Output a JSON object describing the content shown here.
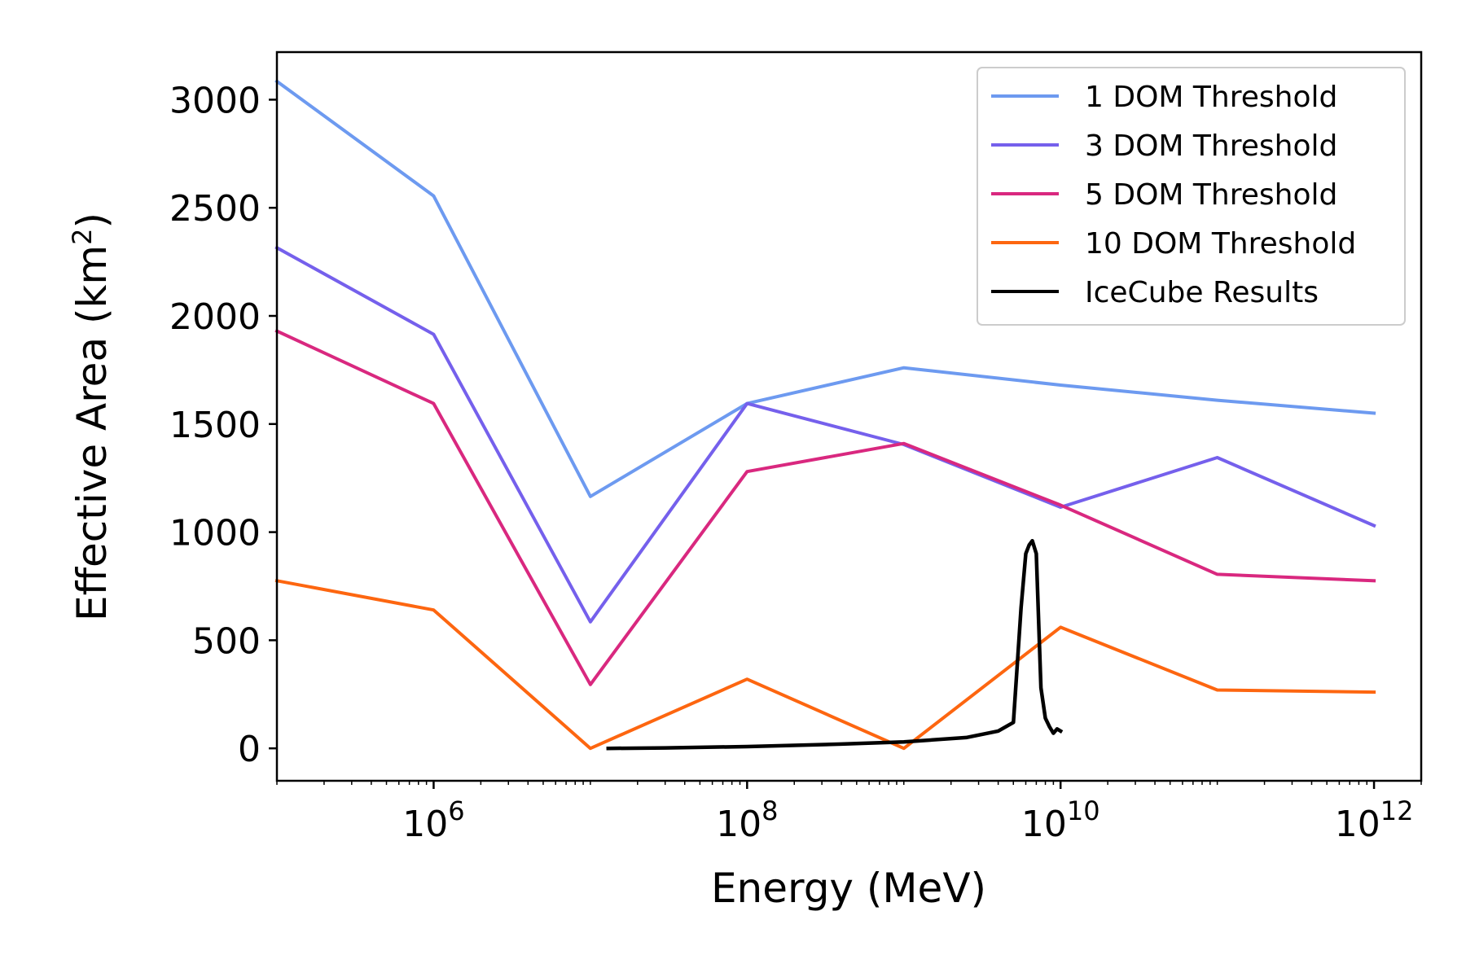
{
  "chart_data": {
    "type": "line",
    "xscale": "log",
    "xlabel": "Energy (MeV)",
    "ylabel_text": "Effective Area (km",
    "ylabel_sup": "2",
    "ylabel_close": ")",
    "xlim": [
      100000.0,
      2000000000000.0
    ],
    "ylim": [
      -150,
      3220
    ],
    "xticks": [
      {
        "value": 1000000.0,
        "base": "10",
        "exp": "6"
      },
      {
        "value": 100000000.0,
        "base": "10",
        "exp": "8"
      },
      {
        "value": 10000000000.0,
        "base": "10",
        "exp": "10"
      },
      {
        "value": 1000000000000.0,
        "base": "10",
        "exp": "12"
      }
    ],
    "yticks": [
      0,
      500,
      1000,
      1500,
      2000,
      2500,
      3000
    ],
    "grid": false,
    "legend_position": "top-right",
    "series": [
      {
        "name": "1 DOM Threshold",
        "color": "#6d9af0",
        "x": [
          100000.0,
          1000000.0,
          10000000.0,
          100000000.0,
          1000000000.0,
          10000000000.0,
          100000000000.0,
          1000000000000.0
        ],
        "y": [
          3085,
          2555,
          1165,
          1595,
          1760,
          1680,
          1610,
          1550
        ]
      },
      {
        "name": "3 DOM Threshold",
        "color": "#7560ec",
        "x": [
          100000.0,
          1000000.0,
          10000000.0,
          100000000.0,
          1000000000.0,
          10000000000.0,
          100000000000.0,
          1000000000000.0
        ],
        "y": [
          2315,
          1915,
          585,
          1595,
          1405,
          1115,
          1345,
          1030
        ]
      },
      {
        "name": "5 DOM Threshold",
        "color": "#d9287f",
        "x": [
          100000.0,
          1000000.0,
          10000000.0,
          100000000.0,
          1000000000.0,
          10000000000.0,
          100000000000.0,
          1000000000000.0
        ],
        "y": [
          1930,
          1595,
          295,
          1280,
          1410,
          1125,
          805,
          775
        ]
      },
      {
        "name": "10 DOM Threshold",
        "color": "#fd6610",
        "x": [
          100000.0,
          1000000.0,
          10000000.0,
          100000000.0,
          1000000000.0,
          10000000000.0,
          100000000000.0,
          1000000000000.0
        ],
        "y": [
          775,
          640,
          0,
          320,
          0,
          560,
          270,
          260
        ]
      },
      {
        "name": "IceCube Results",
        "color": "#000000",
        "x": [
          13000000.0,
          30000000.0,
          100000000.0,
          400000000.0,
          1000000000.0,
          2500000000.0,
          4000000000.0,
          5000000000.0,
          5600000000.0,
          6000000000.0,
          6300000000.0,
          6600000000.0,
          7000000000.0,
          7500000000.0,
          8000000000.0,
          8500000000.0,
          9000000000.0,
          9500000000.0,
          10000000000.0
        ],
        "y": [
          0,
          2,
          8,
          20,
          30,
          50,
          80,
          120,
          650,
          900,
          940,
          960,
          900,
          280,
          140,
          100,
          70,
          90,
          80
        ]
      }
    ]
  }
}
